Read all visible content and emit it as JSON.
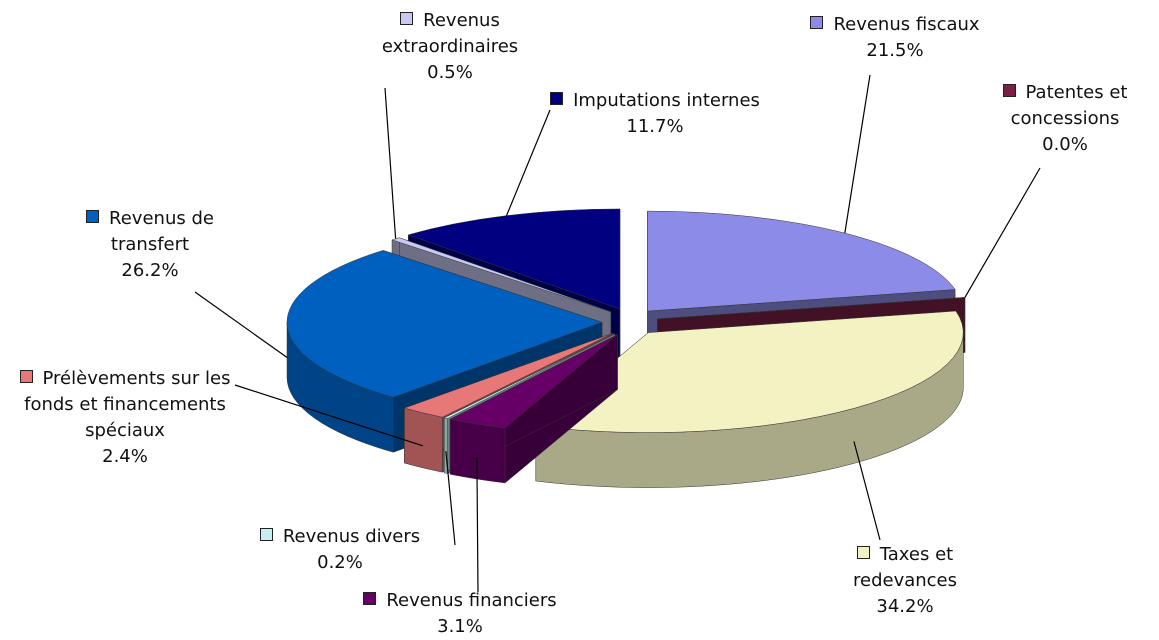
{
  "chart_data": {
    "type": "pie",
    "categories": [
      "Revenus fiscaux",
      "Patentes et concessions",
      "Taxes et redevances",
      "Revenus financiers",
      "Revenus divers",
      "Prélèvements sur les fonds et financements spéciaux",
      "Revenus de transfert",
      "Revenus extraordinaires",
      "Imputations internes"
    ],
    "values": [
      21.5,
      0.0,
      34.2,
      3.1,
      0.2,
      2.4,
      26.2,
      0.5,
      11.7
    ],
    "value_labels": [
      "21.5%",
      "0.0%",
      "34.2%",
      "3.1%",
      "0.2%",
      "2.4%",
      "26.2%",
      "0.5%",
      "11.7%"
    ],
    "colors": [
      "#8c8ce8",
      "#7a1f45",
      "#f2f2c2",
      "#660066",
      "#c6eef0",
      "#e87878",
      "#0060c0",
      "#c8c8f0",
      "#000080"
    ]
  }
}
